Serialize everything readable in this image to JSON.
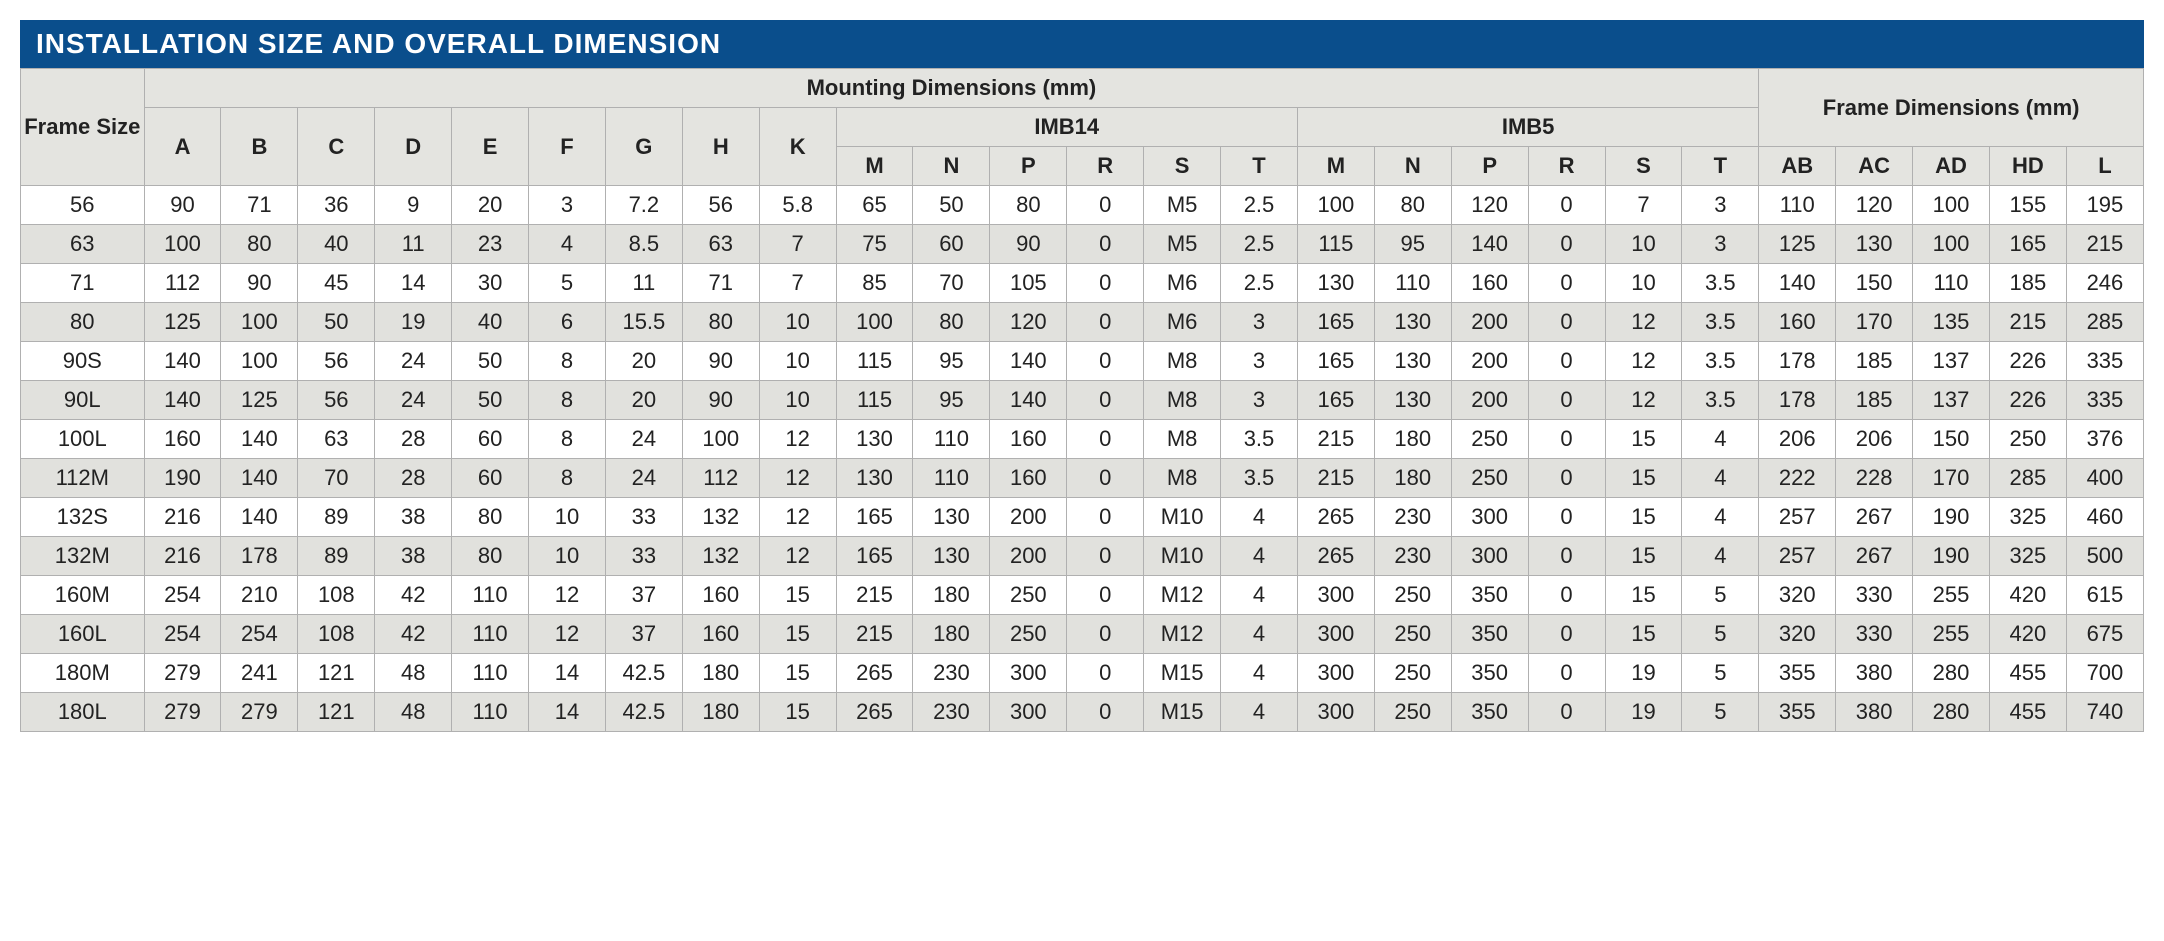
{
  "title": "INSTALLATION SIZE AND OVERALL DIMENSION",
  "headers": {
    "frame_size": "Frame Size",
    "mounting": "Mounting Dimensions (mm)",
    "imb14": "IMB14",
    "imb5": "IMB5",
    "frame_dim": "Frame Dimensions (mm)",
    "cols_base": [
      "A",
      "B",
      "C",
      "D",
      "E",
      "F",
      "G",
      "H",
      "K"
    ],
    "cols_imb": [
      "M",
      "N",
      "P",
      "R",
      "S",
      "T"
    ],
    "cols_frame": [
      "AB",
      "AC",
      "AD",
      "HD",
      "L"
    ]
  },
  "rows": [
    {
      "fs": "56",
      "v": [
        "90",
        "71",
        "36",
        "9",
        "20",
        "3",
        "7.2",
        "56",
        "5.8",
        "65",
        "50",
        "80",
        "0",
        "M5",
        "2.5",
        "100",
        "80",
        "120",
        "0",
        "7",
        "3",
        "110",
        "120",
        "100",
        "155",
        "195"
      ]
    },
    {
      "fs": "63",
      "v": [
        "100",
        "80",
        "40",
        "11",
        "23",
        "4",
        "8.5",
        "63",
        "7",
        "75",
        "60",
        "90",
        "0",
        "M5",
        "2.5",
        "115",
        "95",
        "140",
        "0",
        "10",
        "3",
        "125",
        "130",
        "100",
        "165",
        "215"
      ]
    },
    {
      "fs": "71",
      "v": [
        "112",
        "90",
        "45",
        "14",
        "30",
        "5",
        "11",
        "71",
        "7",
        "85",
        "70",
        "105",
        "0",
        "M6",
        "2.5",
        "130",
        "110",
        "160",
        "0",
        "10",
        "3.5",
        "140",
        "150",
        "110",
        "185",
        "246"
      ]
    },
    {
      "fs": "80",
      "v": [
        "125",
        "100",
        "50",
        "19",
        "40",
        "6",
        "15.5",
        "80",
        "10",
        "100",
        "80",
        "120",
        "0",
        "M6",
        "3",
        "165",
        "130",
        "200",
        "0",
        "12",
        "3.5",
        "160",
        "170",
        "135",
        "215",
        "285"
      ]
    },
    {
      "fs": "90S",
      "v": [
        "140",
        "100",
        "56",
        "24",
        "50",
        "8",
        "20",
        "90",
        "10",
        "115",
        "95",
        "140",
        "0",
        "M8",
        "3",
        "165",
        "130",
        "200",
        "0",
        "12",
        "3.5",
        "178",
        "185",
        "137",
        "226",
        "335"
      ]
    },
    {
      "fs": "90L",
      "v": [
        "140",
        "125",
        "56",
        "24",
        "50",
        "8",
        "20",
        "90",
        "10",
        "115",
        "95",
        "140",
        "0",
        "M8",
        "3",
        "165",
        "130",
        "200",
        "0",
        "12",
        "3.5",
        "178",
        "185",
        "137",
        "226",
        "335"
      ]
    },
    {
      "fs": "100L",
      "v": [
        "160",
        "140",
        "63",
        "28",
        "60",
        "8",
        "24",
        "100",
        "12",
        "130",
        "110",
        "160",
        "0",
        "M8",
        "3.5",
        "215",
        "180",
        "250",
        "0",
        "15",
        "4",
        "206",
        "206",
        "150",
        "250",
        "376"
      ]
    },
    {
      "fs": "112M",
      "v": [
        "190",
        "140",
        "70",
        "28",
        "60",
        "8",
        "24",
        "112",
        "12",
        "130",
        "110",
        "160",
        "0",
        "M8",
        "3.5",
        "215",
        "180",
        "250",
        "0",
        "15",
        "4",
        "222",
        "228",
        "170",
        "285",
        "400"
      ]
    },
    {
      "fs": "132S",
      "v": [
        "216",
        "140",
        "89",
        "38",
        "80",
        "10",
        "33",
        "132",
        "12",
        "165",
        "130",
        "200",
        "0",
        "M10",
        "4",
        "265",
        "230",
        "300",
        "0",
        "15",
        "4",
        "257",
        "267",
        "190",
        "325",
        "460"
      ]
    },
    {
      "fs": "132M",
      "v": [
        "216",
        "178",
        "89",
        "38",
        "80",
        "10",
        "33",
        "132",
        "12",
        "165",
        "130",
        "200",
        "0",
        "M10",
        "4",
        "265",
        "230",
        "300",
        "0",
        "15",
        "4",
        "257",
        "267",
        "190",
        "325",
        "500"
      ]
    },
    {
      "fs": "160M",
      "v": [
        "254",
        "210",
        "108",
        "42",
        "110",
        "12",
        "37",
        "160",
        "15",
        "215",
        "180",
        "250",
        "0",
        "M12",
        "4",
        "300",
        "250",
        "350",
        "0",
        "15",
        "5",
        "320",
        "330",
        "255",
        "420",
        "615"
      ]
    },
    {
      "fs": "160L",
      "v": [
        "254",
        "254",
        "108",
        "42",
        "110",
        "12",
        "37",
        "160",
        "15",
        "215",
        "180",
        "250",
        "0",
        "M12",
        "4",
        "300",
        "250",
        "350",
        "0",
        "15",
        "5",
        "320",
        "330",
        "255",
        "420",
        "675"
      ]
    },
    {
      "fs": "180M",
      "v": [
        "279",
        "241",
        "121",
        "48",
        "110",
        "14",
        "42.5",
        "180",
        "15",
        "265",
        "230",
        "300",
        "0",
        "M15",
        "4",
        "300",
        "250",
        "350",
        "0",
        "19",
        "5",
        "355",
        "380",
        "280",
        "455",
        "700"
      ]
    },
    {
      "fs": "180L",
      "v": [
        "279",
        "279",
        "121",
        "48",
        "110",
        "14",
        "42.5",
        "180",
        "15",
        "265",
        "230",
        "300",
        "0",
        "M15",
        "4",
        "300",
        "250",
        "350",
        "0",
        "19",
        "5",
        "355",
        "380",
        "280",
        "455",
        "740"
      ]
    }
  ],
  "styling": {
    "title_bg": "#0a4e8c",
    "title_color": "#ffffff",
    "header_bg": "#e4e4e0",
    "row_odd_bg": "#ffffff",
    "row_even_bg": "#e1e1dd",
    "border_color": "#b0b0b0",
    "font_size_header": 22,
    "font_size_cell": 22,
    "font_size_title": 28
  }
}
